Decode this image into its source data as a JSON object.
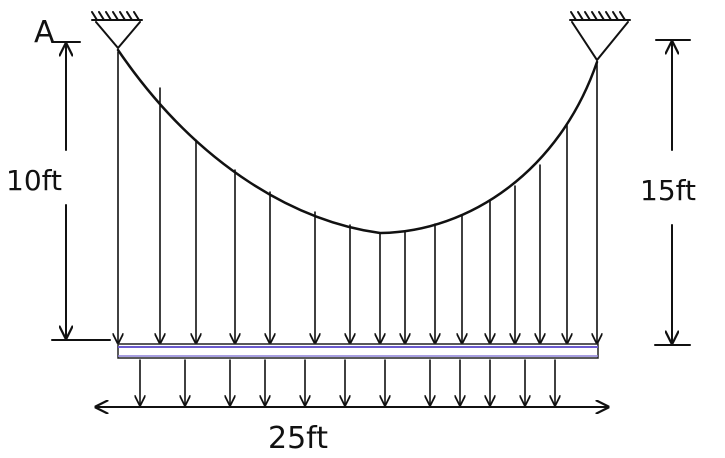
{
  "labels": {
    "point": "A",
    "left_height": "10ft",
    "right_height": "15ft",
    "span": "25ft"
  }
}
